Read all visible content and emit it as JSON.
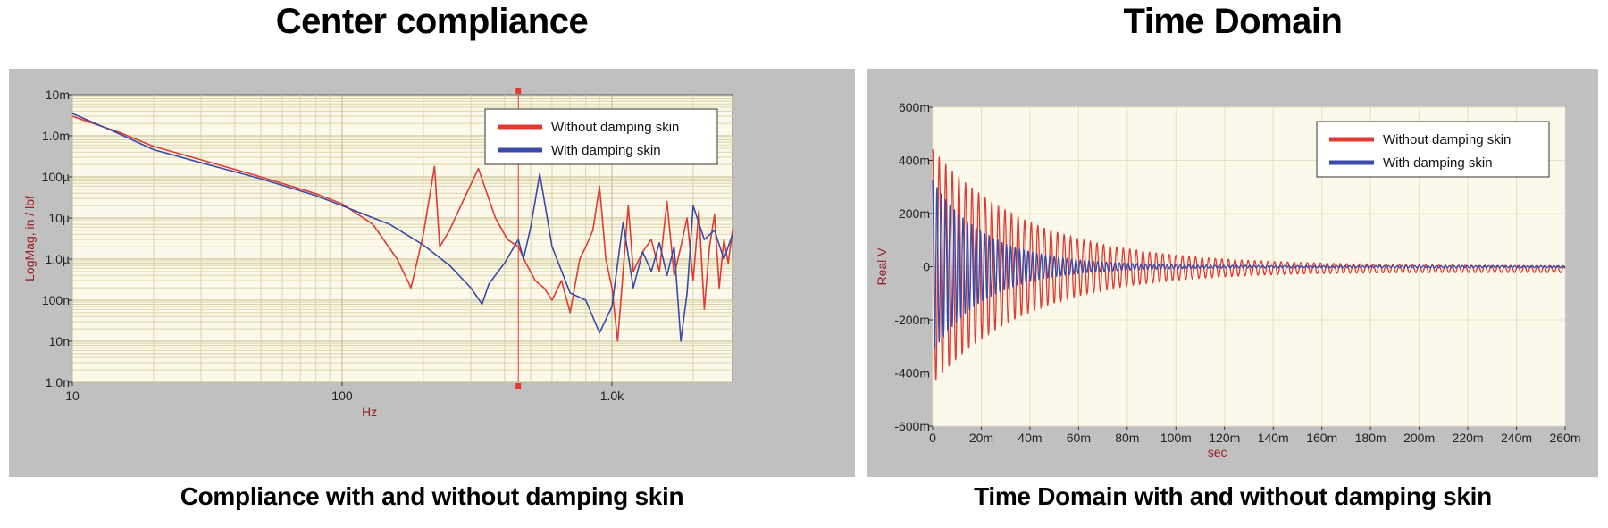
{
  "titles": {
    "left": "Center compliance",
    "right": "Time Domain"
  },
  "captions": {
    "left": "Compliance with and without damping skin",
    "right": "Time Domain with and without damping skin"
  },
  "colors": {
    "without": "#e03a33",
    "with": "#3a4aa8",
    "plot_bg": "#fdf9ea",
    "grid": "#d9d4a8",
    "frame": "#c0c0c0"
  },
  "chart_data": [
    {
      "type": "line",
      "title": "Center compliance",
      "xlabel": "Hz",
      "ylabel": "LogMag, in / lbf",
      "xscale": "log",
      "yscale": "log",
      "xlim": [
        10,
        2800
      ],
      "ylim": [
        1e-09,
        0.01
      ],
      "xticks": [
        {
          "v": 10,
          "label": "10"
        },
        {
          "v": 100,
          "label": "100"
        },
        {
          "v": 1000,
          "label": "1.0k"
        }
      ],
      "yticks": [
        {
          "v": 0.01,
          "label": "10m"
        },
        {
          "v": 0.001,
          "label": "1.0m"
        },
        {
          "v": 0.0001,
          "label": "100µ"
        },
        {
          "v": 1e-05,
          "label": "10µ"
        },
        {
          "v": 1e-06,
          "label": "1.0µ"
        },
        {
          "v": 1e-07,
          "label": "100n"
        },
        {
          "v": 1e-08,
          "label": "10n"
        },
        {
          "v": 1e-09,
          "label": "1.0n"
        }
      ],
      "cursor_x": 450,
      "legend": {
        "position": "top-right"
      },
      "series": [
        {
          "name": "Without damping skin",
          "color": "#e03a33",
          "x": [
            10,
            15,
            20,
            30,
            50,
            80,
            100,
            130,
            160,
            180,
            200,
            220,
            230,
            250,
            280,
            320,
            370,
            410,
            450,
            480,
            520,
            560,
            600,
            650,
            700,
            760,
            800,
            850,
            900,
            950,
            1000,
            1050,
            1100,
            1150,
            1200,
            1300,
            1400,
            1500,
            1600,
            1700,
            1800,
            1900,
            2000,
            2100,
            2200,
            2300,
            2400,
            2500,
            2600,
            2700,
            2800
          ],
          "y": [
            0.003,
            0.0012,
            0.00055,
            0.00026,
            0.0001,
            3.9e-05,
            2.2e-05,
            7e-06,
            1e-06,
            2e-07,
            4e-06,
            0.00018,
            2e-06,
            5e-06,
            2.5e-05,
            0.00016,
            1e-05,
            3e-06,
            2e-06,
            8e-07,
            3e-07,
            2e-07,
            1e-07,
            3e-07,
            5e-08,
            1e-06,
            2e-06,
            5e-06,
            6e-05,
            1e-06,
            2e-07,
            1e-08,
            5e-07,
            2e-05,
            5e-07,
            1.5e-06,
            3e-06,
            5e-07,
            2.5e-05,
            4e-07,
            2e-06,
            1e-05,
            3e-07,
            1.5e-05,
            6e-08,
            2e-06,
            1.2e-05,
            2e-07,
            3e-06,
            8e-07,
            5e-06
          ]
        },
        {
          "name": "With damping skin",
          "color": "#3a4aa8",
          "x": [
            10,
            15,
            20,
            30,
            50,
            80,
            100,
            150,
            200,
            250,
            300,
            330,
            350,
            400,
            450,
            470,
            500,
            540,
            600,
            700,
            800,
            900,
            1000,
            1100,
            1200,
            1300,
            1400,
            1500,
            1600,
            1700,
            1800,
            1900,
            2000,
            2200,
            2400,
            2600,
            2800
          ],
          "y": [
            0.0035,
            0.0011,
            0.00046,
            0.00022,
            9e-05,
            3.5e-05,
            2e-05,
            7e-06,
            2.2e-06,
            7e-07,
            2e-07,
            8e-08,
            2.5e-07,
            8e-07,
            3e-06,
            1e-06,
            6e-06,
            0.00012,
            2e-06,
            1.5e-07,
            1e-07,
            1.6e-08,
            7e-08,
            8e-06,
            2e-07,
            1.5e-06,
            5e-07,
            2.5e-06,
            4e-07,
            2e-06,
            1e-08,
            1.5e-07,
            2e-05,
            3e-06,
            5e-06,
            1e-06,
            4e-06
          ]
        }
      ]
    },
    {
      "type": "line",
      "title": "Time Domain",
      "xlabel": "sec",
      "ylabel": "Real  V",
      "xlim": [
        0,
        0.26
      ],
      "ylim": [
        -0.6,
        0.6
      ],
      "xticks": [
        {
          "v": 0,
          "label": "0"
        },
        {
          "v": 0.02,
          "label": "20m"
        },
        {
          "v": 0.04,
          "label": "40m"
        },
        {
          "v": 0.06,
          "label": "60m"
        },
        {
          "v": 0.08,
          "label": "80m"
        },
        {
          "v": 0.1,
          "label": "100m"
        },
        {
          "v": 0.12,
          "label": "120m"
        },
        {
          "v": 0.14,
          "label": "140m"
        },
        {
          "v": 0.16,
          "label": "160m"
        },
        {
          "v": 0.18,
          "label": "180m"
        },
        {
          "v": 0.2,
          "label": "200m"
        },
        {
          "v": 0.22,
          "label": "220m"
        },
        {
          "v": 0.24,
          "label": "240m"
        },
        {
          "v": 0.26,
          "label": "260m"
        }
      ],
      "yticks": [
        {
          "v": 0.6,
          "label": "600m"
        },
        {
          "v": 0.4,
          "label": "400m"
        },
        {
          "v": 0.2,
          "label": "200m"
        },
        {
          "v": 0,
          "label": "0"
        },
        {
          "v": -0.2,
          "label": "-200m"
        },
        {
          "v": -0.4,
          "label": "-400m"
        },
        {
          "v": -0.6,
          "label": "-600m"
        }
      ],
      "legend": {
        "position": "top-right"
      },
      "series": [
        {
          "name": "Without damping skin",
          "color": "#e03a33",
          "model": {
            "amplitude": 0.43,
            "decay_per_sec": 25,
            "frequency_hz": 370,
            "floor": 0.012,
            "offset_end": -0.01
          }
        },
        {
          "name": "With damping skin",
          "color": "#3a4aa8",
          "model": {
            "amplitude": 0.32,
            "decay_per_sec": 45,
            "frequency_hz": 560,
            "floor": 0.004,
            "offset_end": 0.0
          }
        }
      ]
    }
  ]
}
